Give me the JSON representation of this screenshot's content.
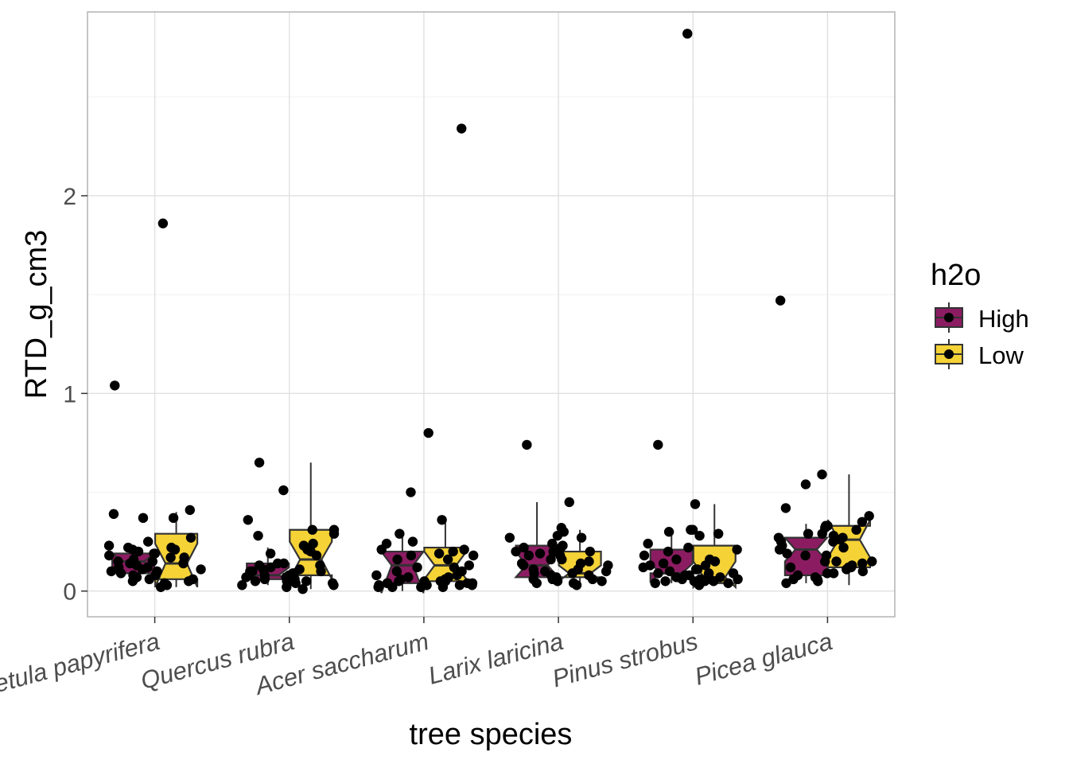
{
  "chart_data": {
    "type": "boxplot",
    "xlabel": "tree species",
    "ylabel": "RTD_g_cm3",
    "ylim": [
      -0.13,
      2.93
    ],
    "y_ticks": [
      0,
      1,
      2
    ],
    "y_tick_labels": [
      "0",
      "1",
      "2"
    ],
    "grid": true,
    "notched": true,
    "categories": [
      "Betula papyrifera",
      "Quercus rubra",
      "Acer saccharum",
      "Larix laricina",
      "Pinus strobus",
      "Picea glauca"
    ],
    "legend": {
      "title": "h2o",
      "placement": "right",
      "entries": [
        {
          "label": "High",
          "color": "#8c1c62"
        },
        {
          "label": "Low",
          "color": "#f5d236"
        }
      ]
    },
    "series": [
      {
        "name": "High",
        "color": "#8c1c62",
        "boxes": [
          {
            "whisker_low": 0.03,
            "q1": 0.09,
            "median": 0.15,
            "q3": 0.19,
            "whisker_high": 0.19,
            "notch_low": 0.19,
            "notch_high": 0.09
          },
          {
            "whisker_low": 0.03,
            "q1": 0.06,
            "median": 0.08,
            "q3": 0.14,
            "whisker_high": 0.22,
            "notch_low": 0.06,
            "notch_high": 0.12
          },
          {
            "whisker_low": 0.0,
            "q1": 0.04,
            "median": 0.13,
            "q3": 0.2,
            "whisker_high": 0.29,
            "notch_low": -0.01,
            "notch_high": 0.2
          },
          {
            "whisker_low": 0.03,
            "q1": 0.07,
            "median": 0.13,
            "q3": 0.23,
            "whisker_high": 0.45,
            "notch_low": 0.07,
            "notch_high": 0.2
          },
          {
            "whisker_low": 0.04,
            "q1": 0.09,
            "median": 0.09,
            "q3": 0.21,
            "whisker_high": 0.3,
            "notch_low": 0.05,
            "notch_high": 0.14
          },
          {
            "whisker_low": 0.04,
            "q1": 0.08,
            "median": 0.21,
            "q3": 0.27,
            "whisker_high": 0.34,
            "notch_low": 0.15,
            "notch_high": 0.27
          }
        ],
        "points": [
          [
            [
              0.05,
              0.07,
              0.1,
              0.12,
              0.14,
              0.16,
              0.18,
              0.19,
              0.2,
              0.22,
              0.09,
              0.06,
              0.11,
              0.23,
              0.08,
              0.15,
              0.37,
              0.39,
              0.13,
              0.21,
              1.04
            ]
          ],
          [
            [
              0.03,
              0.05,
              0.06,
              0.07,
              0.08,
              0.09,
              0.1,
              0.11,
              0.12,
              0.14,
              0.05,
              0.08,
              0.04,
              0.06,
              0.1,
              0.19,
              0.28,
              0.36,
              0.51,
              0.65,
              0.13
            ]
          ],
          [
            [
              0.02,
              0.03,
              0.04,
              0.05,
              0.06,
              0.04,
              0.07,
              0.1,
              0.12,
              0.18,
              0.21,
              0.24,
              0.29,
              0.03,
              0.08,
              0.16,
              0.25,
              0.5,
              0.8,
              0.02,
              0.05
            ]
          ],
          [
            [
              0.04,
              0.06,
              0.07,
              0.09,
              0.11,
              0.13,
              0.14,
              0.16,
              0.2,
              0.22,
              0.24,
              0.28,
              0.3,
              0.32,
              0.05,
              0.08,
              0.1,
              0.19,
              0.27,
              0.74,
              0.18
            ]
          ],
          [
            [
              0.04,
              0.05,
              0.06,
              0.08,
              0.09,
              0.11,
              0.12,
              0.14,
              0.16,
              0.2,
              0.24,
              0.28,
              0.3,
              0.31,
              0.07,
              0.1,
              0.13,
              0.22,
              0.05,
              0.74,
              0.18
            ]
          ],
          [
            [
              0.04,
              0.05,
              0.06,
              0.07,
              0.09,
              0.12,
              0.15,
              0.19,
              0.21,
              0.23,
              0.27,
              0.29,
              0.32,
              0.33,
              0.42,
              0.54,
              1.47,
              0.06,
              0.18,
              0.25,
              0.08
            ]
          ]
        ]
      },
      {
        "name": "Low",
        "color": "#f5d236",
        "boxes": [
          {
            "whisker_low": 0.02,
            "q1": 0.06,
            "median": 0.14,
            "q3": 0.29,
            "whisker_high": 0.4,
            "notch_low": 0.02,
            "notch_high": 0.24
          },
          {
            "whisker_low": 0.01,
            "q1": 0.08,
            "median": 0.16,
            "q3": 0.31,
            "whisker_high": 0.65,
            "notch_low": 0.06,
            "notch_high": 0.25
          },
          {
            "whisker_low": 0.02,
            "q1": 0.05,
            "median": 0.13,
            "q3": 0.22,
            "whisker_high": 0.36,
            "notch_low": 0.06,
            "notch_high": 0.2
          },
          {
            "whisker_low": 0.04,
            "q1": 0.07,
            "median": 0.09,
            "q3": 0.2,
            "whisker_high": 0.31,
            "notch_low": 0.05,
            "notch_high": 0.13
          },
          {
            "whisker_low": 0.03,
            "q1": 0.04,
            "median": 0.07,
            "q3": 0.23,
            "whisker_high": 0.44,
            "notch_low": 0.02,
            "notch_high": 0.15
          },
          {
            "whisker_low": 0.03,
            "q1": 0.12,
            "median": 0.26,
            "q3": 0.33,
            "whisker_high": 0.59,
            "notch_low": 0.17,
            "notch_high": 0.36
          }
        ],
        "points": [
          [
            [
              0.02,
              0.04,
              0.06,
              0.08,
              0.1,
              0.12,
              0.14,
              0.15,
              0.17,
              0.19,
              0.21,
              0.22,
              0.25,
              0.27,
              0.37,
              0.41,
              0.03,
              0.11,
              0.05,
              0.17,
              1.86
            ]
          ],
          [
            [
              0.01,
              0.02,
              0.04,
              0.05,
              0.07,
              0.09,
              0.11,
              0.14,
              0.18,
              0.21,
              0.23,
              0.24,
              0.29,
              0.31,
              0.05,
              0.08,
              0.03,
              0.13,
              0.2,
              0.31,
              0.1
            ]
          ],
          [
            [
              0.02,
              0.03,
              0.04,
              0.05,
              0.06,
              0.08,
              0.1,
              0.13,
              0.16,
              0.18,
              0.2,
              0.21,
              0.36,
              0.02,
              0.04,
              0.07,
              0.12,
              0.19,
              0.03,
              2.34,
              0.05
            ]
          ],
          [
            [
              0.03,
              0.05,
              0.06,
              0.07,
              0.09,
              0.11,
              0.13,
              0.15,
              0.18,
              0.2,
              0.22,
              0.23,
              0.27,
              0.45,
              0.06,
              0.1,
              0.14,
              0.2,
              0.04,
              0.16,
              0.08
            ]
          ],
          [
            [
              0.03,
              0.04,
              0.05,
              0.06,
              0.07,
              0.08,
              0.09,
              0.11,
              0.13,
              0.16,
              0.21,
              0.29,
              0.31,
              0.44,
              0.05,
              0.06,
              0.09,
              0.15,
              0.05,
              2.82,
              0.08
            ]
          ],
          [
            [
              0.1,
              0.11,
              0.13,
              0.15,
              0.18,
              0.22,
              0.25,
              0.27,
              0.29,
              0.33,
              0.35,
              0.38,
              0.59,
              0.12,
              0.15,
              0.26,
              0.09,
              0.14,
              0.12,
              0.28,
              0.31
            ]
          ]
        ]
      }
    ]
  }
}
